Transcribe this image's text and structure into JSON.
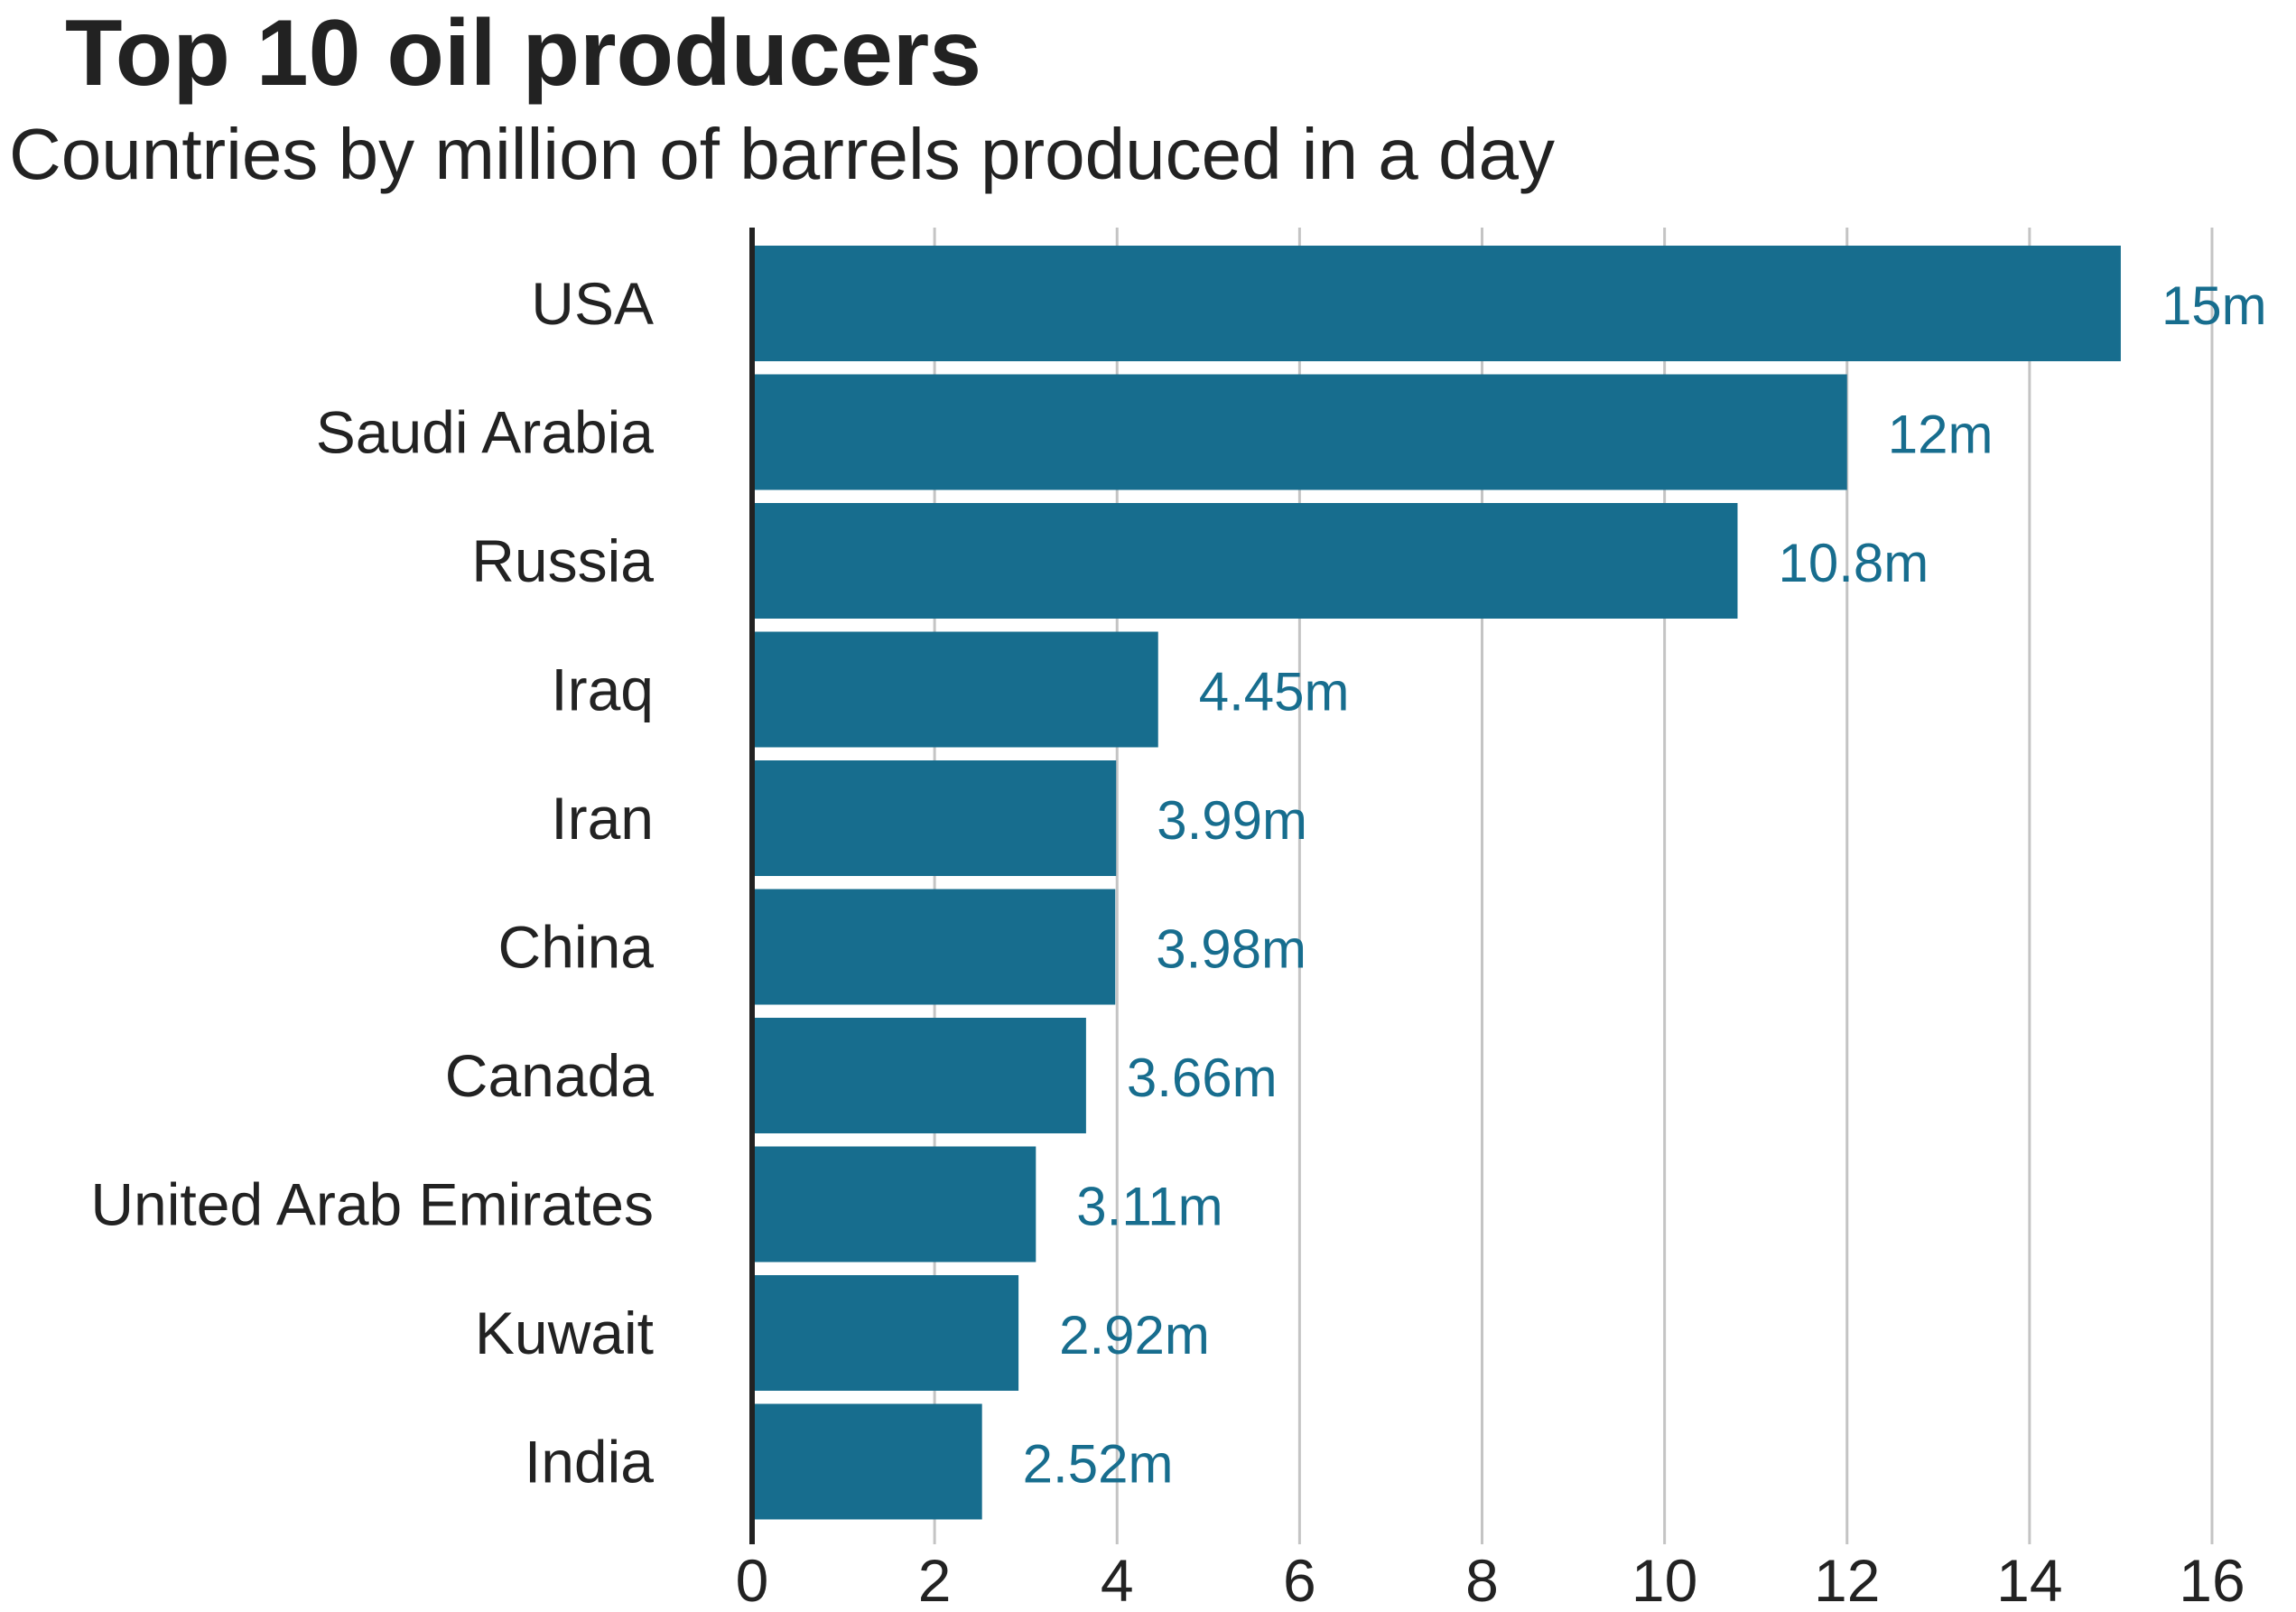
{
  "chart_data": {
    "type": "bar",
    "orientation": "horizontal",
    "title": "Top 10 oil producers",
    "subtitle": "Countries by million of barrels produced in a day",
    "categories": [
      "USA",
      "Saudi Arabia",
      "Russia",
      "Iraq",
      "Iran",
      "China",
      "Canada",
      "United Arab Emirates",
      "Kuwait",
      "India"
    ],
    "values": [
      15,
      12,
      10.8,
      4.45,
      3.99,
      3.98,
      3.66,
      3.11,
      2.92,
      2.52
    ],
    "value_labels": [
      "15m",
      "12m",
      "10.8m",
      "4.45m",
      "3.99m",
      "3.98m",
      "3.66m",
      "3.11m",
      "2.92m",
      "2.52m"
    ],
    "xlim": [
      0,
      16
    ],
    "xticks": [
      0,
      2,
      4,
      6,
      8,
      10,
      12,
      14,
      16
    ],
    "xlabel": "",
    "ylabel": "",
    "grid": true,
    "legend": "none",
    "colors": {
      "bar": "#176d8e",
      "value_label": "#176d8e",
      "grid": "#c4c4c4",
      "axis": "#222222",
      "text": "#222222"
    }
  }
}
